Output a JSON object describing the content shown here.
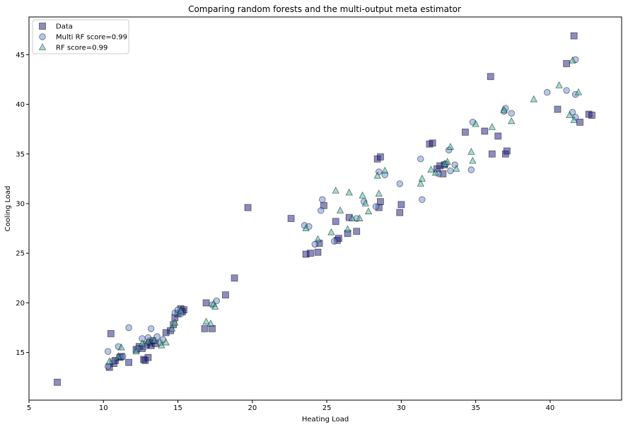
{
  "chart_data": {
    "type": "scatter",
    "title": "Comparing random forests and the multi-output meta estimator",
    "xlabel": "Heating Load",
    "ylabel": "Cooling Load",
    "xlim": [
      5,
      44.8
    ],
    "ylim": [
      10.2,
      48.8
    ],
    "xticks": [
      5,
      10,
      15,
      20,
      25,
      30,
      35,
      40
    ],
    "yticks": [
      15,
      20,
      25,
      30,
      35,
      40,
      45
    ],
    "grid": false,
    "legend_position": "top-left",
    "series": [
      {
        "name": "Data",
        "marker": "square",
        "color": "#1a1a80",
        "points": [
          [
            6.9,
            12.0
          ],
          [
            10.4,
            13.5
          ],
          [
            10.5,
            16.9
          ],
          [
            10.7,
            13.9
          ],
          [
            10.8,
            14.2
          ],
          [
            11.1,
            14.5
          ],
          [
            11.2,
            14.6
          ],
          [
            11.7,
            14.0
          ],
          [
            12.2,
            15.3
          ],
          [
            12.4,
            15.6
          ],
          [
            12.6,
            15.4
          ],
          [
            12.7,
            14.3
          ],
          [
            12.8,
            14.2
          ],
          [
            13.0,
            14.5
          ],
          [
            12.9,
            15.8
          ],
          [
            13.1,
            16.0
          ],
          [
            13.2,
            15.7
          ],
          [
            13.3,
            16.2
          ],
          [
            13.5,
            15.9
          ],
          [
            14.2,
            17.0
          ],
          [
            14.5,
            17.2
          ],
          [
            14.7,
            17.8
          ],
          [
            14.8,
            18.5
          ],
          [
            15.0,
            18.9
          ],
          [
            15.2,
            19.4
          ],
          [
            15.4,
            19.3
          ],
          [
            15.3,
            19.1
          ],
          [
            16.8,
            17.4
          ],
          [
            16.9,
            20.0
          ],
          [
            17.3,
            17.4
          ],
          [
            18.2,
            20.8
          ],
          [
            18.8,
            22.5
          ],
          [
            19.7,
            29.6
          ],
          [
            22.6,
            28.5
          ],
          [
            23.6,
            24.9
          ],
          [
            23.9,
            25.0
          ],
          [
            24.4,
            25.1
          ],
          [
            24.5,
            26.0
          ],
          [
            24.8,
            29.8
          ],
          [
            25.6,
            28.2
          ],
          [
            25.7,
            26.3
          ],
          [
            25.8,
            26.5
          ],
          [
            26.4,
            27.0
          ],
          [
            26.5,
            28.6
          ],
          [
            27.0,
            27.2
          ],
          [
            28.4,
            34.5
          ],
          [
            28.6,
            34.7
          ],
          [
            28.5,
            29.6
          ],
          [
            28.6,
            30.2
          ],
          [
            29.9,
            29.1
          ],
          [
            30.0,
            29.9
          ],
          [
            31.9,
            36.0
          ],
          [
            32.1,
            36.1
          ],
          [
            32.4,
            33.5
          ],
          [
            32.6,
            33.8
          ],
          [
            32.8,
            33.0
          ],
          [
            32.9,
            33.9
          ],
          [
            34.3,
            37.2
          ],
          [
            35.6,
            37.3
          ],
          [
            36.0,
            42.8
          ],
          [
            36.1,
            35.0
          ],
          [
            36.5,
            36.8
          ],
          [
            37.0,
            35.0
          ],
          [
            37.1,
            35.3
          ],
          [
            40.5,
            39.5
          ],
          [
            41.1,
            44.1
          ],
          [
            41.6,
            46.9
          ],
          [
            42.0,
            38.2
          ],
          [
            42.6,
            39.0
          ],
          [
            42.8,
            38.9
          ]
        ]
      },
      {
        "name": "Multi RF score=0.99",
        "marker": "circle",
        "color": "#6b8fd6",
        "points": [
          [
            10.3,
            15.1
          ],
          [
            10.3,
            13.6
          ],
          [
            10.6,
            14.1
          ],
          [
            11.0,
            15.6
          ],
          [
            11.3,
            14.6
          ],
          [
            11.7,
            17.5
          ],
          [
            12.3,
            15.4
          ],
          [
            12.6,
            16.4
          ],
          [
            12.8,
            15.6
          ],
          [
            13.0,
            16.5
          ],
          [
            13.2,
            17.4
          ],
          [
            13.6,
            16.6
          ],
          [
            13.8,
            16.0
          ],
          [
            14.0,
            16.3
          ],
          [
            14.8,
            19.0
          ],
          [
            15.0,
            19.3
          ],
          [
            15.2,
            18.9
          ],
          [
            17.3,
            19.8
          ],
          [
            17.6,
            20.2
          ],
          [
            23.5,
            27.8
          ],
          [
            23.8,
            27.7
          ],
          [
            24.2,
            25.9
          ],
          [
            24.6,
            29.3
          ],
          [
            24.7,
            30.4
          ],
          [
            25.5,
            26.2
          ],
          [
            27.0,
            28.5
          ],
          [
            27.5,
            30.2
          ],
          [
            28.3,
            29.7
          ],
          [
            28.5,
            33.2
          ],
          [
            28.9,
            32.9
          ],
          [
            29.9,
            32.0
          ],
          [
            31.3,
            34.5
          ],
          [
            31.4,
            30.4
          ],
          [
            32.5,
            33.0
          ],
          [
            33.0,
            34.0
          ],
          [
            33.2,
            35.4
          ],
          [
            33.3,
            33.3
          ],
          [
            33.6,
            33.9
          ],
          [
            34.7,
            33.4
          ],
          [
            34.8,
            38.2
          ],
          [
            36.9,
            39.3
          ],
          [
            37.0,
            39.6
          ],
          [
            37.4,
            39.1
          ],
          [
            39.8,
            41.2
          ],
          [
            41.1,
            41.4
          ],
          [
            41.5,
            39.2
          ],
          [
            41.7,
            38.7
          ],
          [
            41.7,
            41.0
          ],
          [
            41.7,
            44.5
          ]
        ]
      },
      {
        "name": "RF score=0.99",
        "marker": "triangle",
        "color": "#3dbfa6",
        "points": [
          [
            10.4,
            14.1
          ],
          [
            11.0,
            14.6
          ],
          [
            11.2,
            15.5
          ],
          [
            12.2,
            15.1
          ],
          [
            12.6,
            15.9
          ],
          [
            13.0,
            16.1
          ],
          [
            13.4,
            16.2
          ],
          [
            13.9,
            15.7
          ],
          [
            14.2,
            16.0
          ],
          [
            14.6,
            17.4
          ],
          [
            14.8,
            18.0
          ],
          [
            15.2,
            19.2
          ],
          [
            16.9,
            18.1
          ],
          [
            17.2,
            17.9
          ],
          [
            17.4,
            19.9
          ],
          [
            17.5,
            19.6
          ],
          [
            23.6,
            27.5
          ],
          [
            24.4,
            26.4
          ],
          [
            25.3,
            27.1
          ],
          [
            25.6,
            31.3
          ],
          [
            25.9,
            29.3
          ],
          [
            26.4,
            27.4
          ],
          [
            26.5,
            31.1
          ],
          [
            26.7,
            28.5
          ],
          [
            27.2,
            28.5
          ],
          [
            27.4,
            30.8
          ],
          [
            27.6,
            30.0
          ],
          [
            27.8,
            29.2
          ],
          [
            28.4,
            32.8
          ],
          [
            28.5,
            31.0
          ],
          [
            28.9,
            33.3
          ],
          [
            31.3,
            32.0
          ],
          [
            31.4,
            32.5
          ],
          [
            32.0,
            33.4
          ],
          [
            32.3,
            33.1
          ],
          [
            32.9,
            34.0
          ],
          [
            33.1,
            34.2
          ],
          [
            33.3,
            35.7
          ],
          [
            33.7,
            33.5
          ],
          [
            34.7,
            35.2
          ],
          [
            34.8,
            34.3
          ],
          [
            35.0,
            38.0
          ],
          [
            36.1,
            37.7
          ],
          [
            36.9,
            39.4
          ],
          [
            37.4,
            38.3
          ],
          [
            38.9,
            40.5
          ],
          [
            40.6,
            41.9
          ],
          [
            41.3,
            38.9
          ],
          [
            41.6,
            38.4
          ],
          [
            41.5,
            44.4
          ],
          [
            41.9,
            41.2
          ]
        ]
      }
    ]
  }
}
